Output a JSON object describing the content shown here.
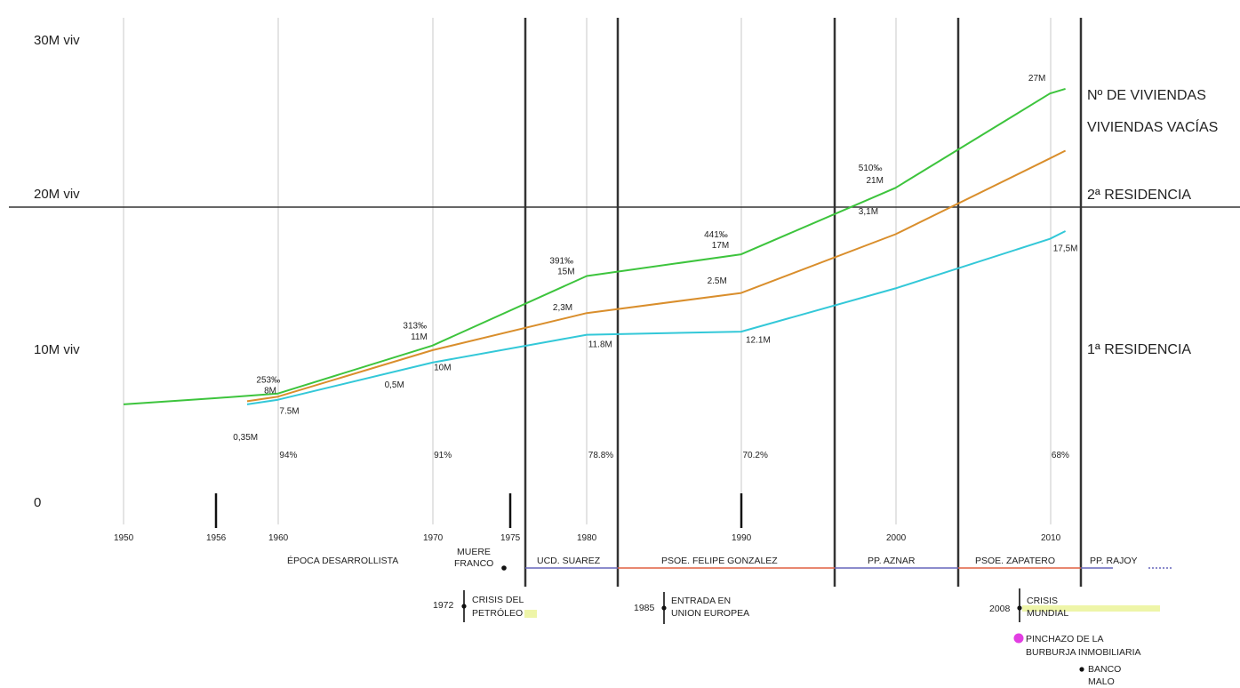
{
  "chart_data": {
    "type": "line",
    "x_range": [
      1950,
      2012
    ],
    "y_range": [
      0,
      30
    ],
    "y_axis_labels": [
      "0",
      "10M viv",
      "20M viv",
      "30M viv"
    ],
    "x_ticks": [
      "1950",
      "1956",
      "1960",
      "1970",
      "1975",
      "1980",
      "1990",
      "2000",
      "2010"
    ],
    "right_labels": [
      "Nº DE VIVIENDAS",
      "VIVIENDAS VACÍAS",
      "2ª RESIDENCIA",
      "1ª RESIDENCIA"
    ],
    "series": [
      {
        "name": "Nº DE VIVIENDAS",
        "color": "#3dc43d",
        "x": [
          1950,
          1956,
          1960,
          1970,
          1980,
          1990,
          2000,
          2010,
          2011
        ],
        "y": [
          6.5,
          6.9,
          7.2,
          10.3,
          14.8,
          16.2,
          20.5,
          26.6,
          26.9
        ]
      },
      {
        "name": "VIVIENDAS VACÍAS",
        "color": "#d98e2c",
        "x": [
          1958,
          1960,
          1970,
          1980,
          1990,
          2000,
          2010,
          2011
        ],
        "y": [
          6.7,
          7.0,
          10.0,
          12.4,
          13.7,
          17.5,
          22.4,
          22.9
        ]
      },
      {
        "name": "1ª RESIDENCIA",
        "color": "#33c8d8",
        "x": [
          1958,
          1960,
          1970,
          1980,
          1990,
          2000,
          2010,
          2011
        ],
        "y": [
          6.5,
          6.8,
          9.2,
          11.0,
          11.2,
          14.0,
          17.2,
          17.7
        ]
      }
    ],
    "point_labels": [
      {
        "text": "253‰",
        "x": 1958.6,
        "y": 7.9
      },
      {
        "text": "8M",
        "x": 1959.1,
        "y": 7.2
      },
      {
        "text": "7.5M",
        "x": 1960.1,
        "y": 5.9
      },
      {
        "text": "0,35M",
        "x": 1957.1,
        "y": 4.2
      },
      {
        "text": "313‰",
        "x": 1968.1,
        "y": 11.4
      },
      {
        "text": "11M",
        "x": 1968.6,
        "y": 10.7
      },
      {
        "text": "10M",
        "x": 1970.1,
        "y": 8.7
      },
      {
        "text": "0,5M",
        "x": 1966.9,
        "y": 7.6
      },
      {
        "text": "391‰",
        "x": 1977.6,
        "y": 15.6
      },
      {
        "text": "15M",
        "x": 1978.1,
        "y": 14.9
      },
      {
        "text": "2,3M",
        "x": 1977.8,
        "y": 12.6
      },
      {
        "text": "11.8M",
        "x": 1980.1,
        "y": 10.2
      },
      {
        "text": "441‰",
        "x": 1987.6,
        "y": 17.3
      },
      {
        "text": "17M",
        "x": 1988.1,
        "y": 16.6
      },
      {
        "text": "2.5M",
        "x": 1987.8,
        "y": 14.3
      },
      {
        "text": "12.1M",
        "x": 1990.3,
        "y": 10.5
      },
      {
        "text": "510‰",
        "x": 1997.6,
        "y": 21.6
      },
      {
        "text": "21M",
        "x": 1998.1,
        "y": 20.8
      },
      {
        "text": "3,1M",
        "x": 1997.6,
        "y": 18.8
      },
      {
        "text": "27M",
        "x": 2008.6,
        "y": 27.4
      },
      {
        "text": "17,5M",
        "x": 2010.2,
        "y": 16.4
      }
    ],
    "percent_labels": [
      {
        "text": "94%",
        "x": 1960.1
      },
      {
        "text": "91%",
        "x": 1970.1
      },
      {
        "text": "78.8%",
        "x": 1980.1
      },
      {
        "text": "70.2%",
        "x": 1990.1
      },
      {
        "text": "68%",
        "x": 2010.1
      }
    ],
    "periods": [
      {
        "text": "ÉPOCA DESARROLLISTA",
        "color": null
      },
      {
        "text": "UCD. SUAREZ",
        "color": "#6666bb"
      },
      {
        "text": "PSOE. FELIPE GONZALEZ",
        "color": "#e06040"
      },
      {
        "text": "PP. AZNAR",
        "color": "#6666bb"
      },
      {
        "text": "PSOE. ZAPATERO",
        "color": "#e06040"
      },
      {
        "text": "PP. RAJOY",
        "color": "#6666bb"
      }
    ],
    "events": {
      "muere_franco": [
        "MUERE",
        "FRANCO"
      ],
      "crisis_petroleo": {
        "year": "1972",
        "lines": [
          "CRISIS DEL",
          "PETRÓLEO"
        ]
      },
      "union_europea": {
        "year": "1985",
        "lines": [
          "ENTRADA EN",
          "UNION EUROPEA"
        ]
      },
      "crisis_mundial": {
        "year": "2008",
        "lines": [
          "CRISIS",
          "MUNDIAL"
        ]
      },
      "burbuja": [
        "PINCHAZO DE LA",
        "BURBURJA INMOBILIARIA"
      ],
      "banco_malo": [
        "BANCO",
        "MALO"
      ]
    },
    "colors": {
      "vivienda_total": "#3dc43d",
      "vacias": "#d98e2c",
      "primera": "#33c8d8",
      "burbuja_dot": "#e23ee2",
      "crisis_band": "#eef5a8"
    },
    "grid": true,
    "legend": "right"
  }
}
